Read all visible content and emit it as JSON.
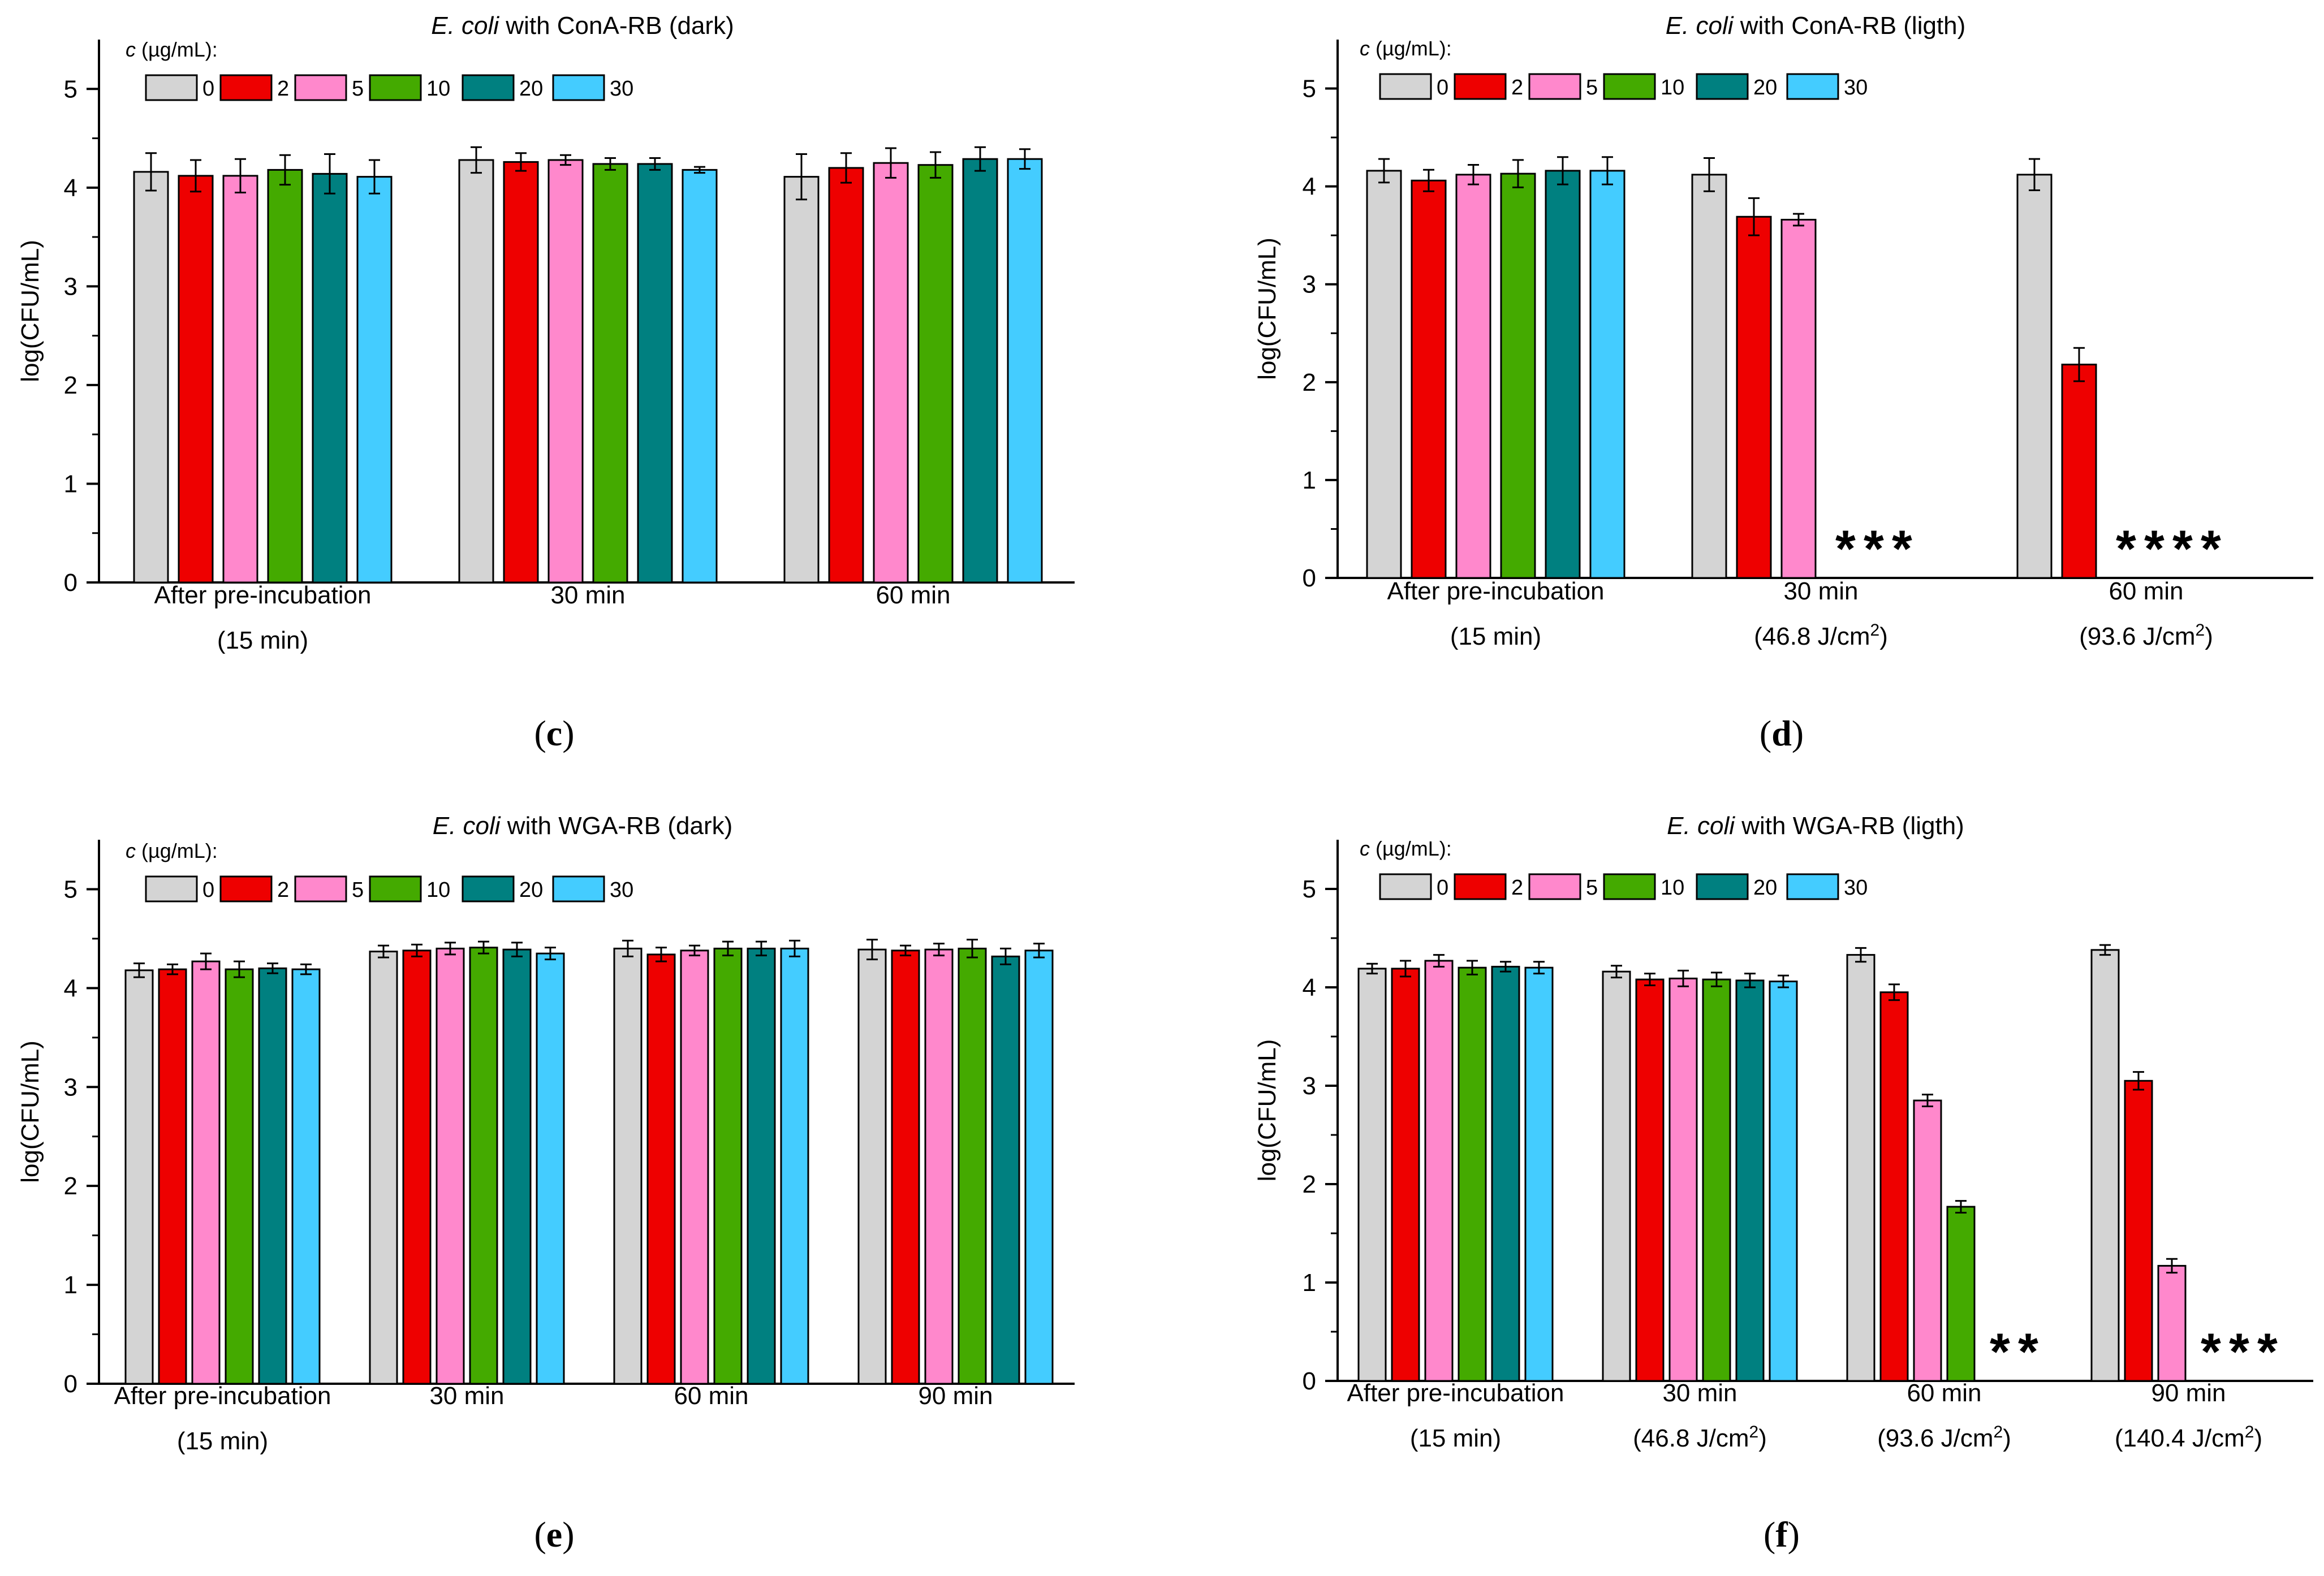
{
  "figure": {
    "legend_prefix": "c",
    "legend_unit": "(µg/mL):",
    "legend_labels": [
      "0",
      "2",
      "5",
      "10",
      "20",
      "30"
    ],
    "series_colors": [
      "#d4d4d4",
      "#ee0000",
      "#ff88cc",
      "#44aa00",
      "#008080",
      "#44ccff"
    ],
    "ylabel": "log(CFU/mL)",
    "yticks": [
      0,
      1,
      2,
      3,
      4,
      5
    ],
    "star": "*"
  },
  "chart_data": [
    {
      "type": "bar",
      "panel": "(c)",
      "title_italic": "E. coli",
      "title_rest": " with ConA-RB (dark)",
      "title": "E. coli with ConA-RB (dark)",
      "ylabel": "log(CFU/mL)",
      "ylim": [
        0,
        5.5
      ],
      "categories": [
        "After pre-incubation (15 min)",
        "30 min",
        "60 min"
      ],
      "category_lines": [
        [
          {
            "t": "After pre-incubation"
          },
          {
            "t": "(15 min)"
          }
        ],
        [
          {
            "t": "30 min"
          }
        ],
        [
          {
            "t": "60 min"
          }
        ]
      ],
      "series": [
        {
          "name": "0",
          "values": [
            4.16,
            4.28,
            4.11
          ],
          "errors": [
            0.19,
            0.13,
            0.23
          ]
        },
        {
          "name": "2",
          "values": [
            4.12,
            4.26,
            4.2
          ],
          "errors": [
            0.16,
            0.09,
            0.15
          ]
        },
        {
          "name": "5",
          "values": [
            4.12,
            4.28,
            4.25
          ],
          "errors": [
            0.17,
            0.05,
            0.15
          ]
        },
        {
          "name": "10",
          "values": [
            4.18,
            4.24,
            4.23
          ],
          "errors": [
            0.15,
            0.06,
            0.13
          ]
        },
        {
          "name": "20",
          "values": [
            4.14,
            4.24,
            4.29
          ],
          "errors": [
            0.2,
            0.06,
            0.12
          ]
        },
        {
          "name": "30",
          "values": [
            4.11,
            4.18,
            4.29
          ],
          "errors": [
            0.17,
            0.03,
            0.1
          ]
        }
      ],
      "stars": [
        [],
        [],
        []
      ]
    },
    {
      "type": "bar",
      "panel": "(d)",
      "title_italic": "E. coli",
      "title_rest": " with ConA-RB (ligth)",
      "title": "E. coli with ConA-RB (ligth)",
      "ylabel": "log(CFU/mL)",
      "ylim": [
        0,
        5.5
      ],
      "categories": [
        "After pre-incubation (15 min)",
        "30 min (46.8 J/cm2)",
        "60 min (93.6 J/cm2)"
      ],
      "category_lines": [
        [
          {
            "t": "After pre-incubation"
          },
          {
            "t": "(15 min)"
          }
        ],
        [
          {
            "t": "30 min"
          },
          {
            "t": "(46.8 J/cm",
            "sup": "2",
            "tail": ")"
          }
        ],
        [
          {
            "t": "60 min"
          },
          {
            "t": "(93.6 J/cm",
            "sup": "2",
            "tail": ")"
          }
        ]
      ],
      "series": [
        {
          "name": "0",
          "values": [
            4.16,
            4.12,
            4.12
          ],
          "errors": [
            0.12,
            0.17,
            0.16
          ]
        },
        {
          "name": "2",
          "values": [
            4.06,
            3.69,
            2.18
          ],
          "errors": [
            0.11,
            0.19,
            0.17
          ]
        },
        {
          "name": "5",
          "values": [
            4.12,
            3.66,
            null
          ],
          "errors": [
            0.1,
            0.06,
            0
          ]
        },
        {
          "name": "10",
          "values": [
            4.13,
            null,
            null
          ],
          "errors": [
            0.14,
            0,
            0
          ]
        },
        {
          "name": "20",
          "values": [
            4.16,
            null,
            null
          ],
          "errors": [
            0.14,
            0,
            0
          ]
        },
        {
          "name": "30",
          "values": [
            4.16,
            null,
            null
          ],
          "errors": [
            0.14,
            0,
            0
          ]
        }
      ],
      "stars": [
        [],
        [
          3,
          4,
          5
        ],
        [
          2,
          3,
          4,
          5
        ]
      ]
    },
    {
      "type": "bar",
      "panel": "(e)",
      "title_italic": "E. coli",
      "title_rest": " with WGA-RB (dark)",
      "title": "E. coli with WGA-RB (dark)",
      "ylabel": "log(CFU/mL)",
      "ylim": [
        0,
        5.5
      ],
      "categories": [
        "After pre-incubation (15 min)",
        "30 min",
        "60 min",
        "90 min"
      ],
      "category_lines": [
        [
          {
            "t": "After pre-incubation"
          },
          {
            "t": "(15 min)"
          }
        ],
        [
          {
            "t": "30 min"
          }
        ],
        [
          {
            "t": "60 min"
          }
        ],
        [
          {
            "t": "90 min"
          }
        ]
      ],
      "series": [
        {
          "name": "0",
          "values": [
            4.18,
            4.37,
            4.4,
            4.39
          ],
          "errors": [
            0.07,
            0.06,
            0.08,
            0.1
          ]
        },
        {
          "name": "2",
          "values": [
            4.19,
            4.38,
            4.34,
            4.38
          ],
          "errors": [
            0.05,
            0.06,
            0.07,
            0.05
          ]
        },
        {
          "name": "5",
          "values": [
            4.27,
            4.4,
            4.38,
            4.39
          ],
          "errors": [
            0.08,
            0.06,
            0.05,
            0.06
          ]
        },
        {
          "name": "10",
          "values": [
            4.19,
            4.41,
            4.4,
            4.4
          ],
          "errors": [
            0.08,
            0.06,
            0.07,
            0.09
          ]
        },
        {
          "name": "20",
          "values": [
            4.2,
            4.39,
            4.4,
            4.32
          ],
          "errors": [
            0.05,
            0.07,
            0.07,
            0.08
          ]
        },
        {
          "name": "30",
          "values": [
            4.19,
            4.35,
            4.4,
            4.38
          ],
          "errors": [
            0.05,
            0.06,
            0.08,
            0.07
          ]
        }
      ],
      "stars": [
        [],
        [],
        [],
        []
      ]
    },
    {
      "type": "bar",
      "panel": "(f)",
      "title_italic": "E. coli",
      "title_rest": " with WGA-RB (ligth)",
      "title": "E. coli with WGA-RB (ligth)",
      "ylabel": "log(CFU/mL)",
      "ylim": [
        0,
        5.5
      ],
      "categories": [
        "After pre-incubation (15 min)",
        "30 min (46.8 J/cm2)",
        "60 min (93.6 J/cm2)",
        "90 min (140.4 J/cm2)"
      ],
      "category_lines": [
        [
          {
            "t": "After pre-incubation"
          },
          {
            "t": "(15 min)"
          }
        ],
        [
          {
            "t": "30 min"
          },
          {
            "t": "(46.8 J/cm",
            "sup": "2",
            "tail": ")"
          }
        ],
        [
          {
            "t": "60 min"
          },
          {
            "t": "(93.6 J/cm",
            "sup": "2",
            "tail": ")"
          }
        ],
        [
          {
            "t": "90 min"
          },
          {
            "t": "(140.4 J/cm",
            "sup": "2",
            "tail": ")"
          }
        ]
      ],
      "series": [
        {
          "name": "0",
          "values": [
            4.19,
            4.16,
            4.33,
            4.38
          ],
          "errors": [
            0.05,
            0.06,
            0.07,
            0.05
          ]
        },
        {
          "name": "2",
          "values": [
            4.19,
            4.08,
            3.95,
            3.05
          ],
          "errors": [
            0.08,
            0.06,
            0.08,
            0.09
          ]
        },
        {
          "name": "5",
          "values": [
            4.27,
            4.09,
            2.85,
            1.17
          ],
          "errors": [
            0.06,
            0.08,
            0.06,
            0.07
          ]
        },
        {
          "name": "10",
          "values": [
            4.2,
            4.08,
            1.77,
            null
          ],
          "errors": [
            0.07,
            0.07,
            0.06,
            0
          ]
        },
        {
          "name": "20",
          "values": [
            4.21,
            4.07,
            null,
            null
          ],
          "errors": [
            0.05,
            0.07,
            0,
            0
          ]
        },
        {
          "name": "30",
          "values": [
            4.2,
            4.06,
            null,
            null
          ],
          "errors": [
            0.06,
            0.06,
            0,
            0
          ]
        }
      ],
      "stars": [
        [],
        [],
        [
          4,
          5
        ],
        [
          3,
          4,
          5
        ]
      ]
    }
  ]
}
